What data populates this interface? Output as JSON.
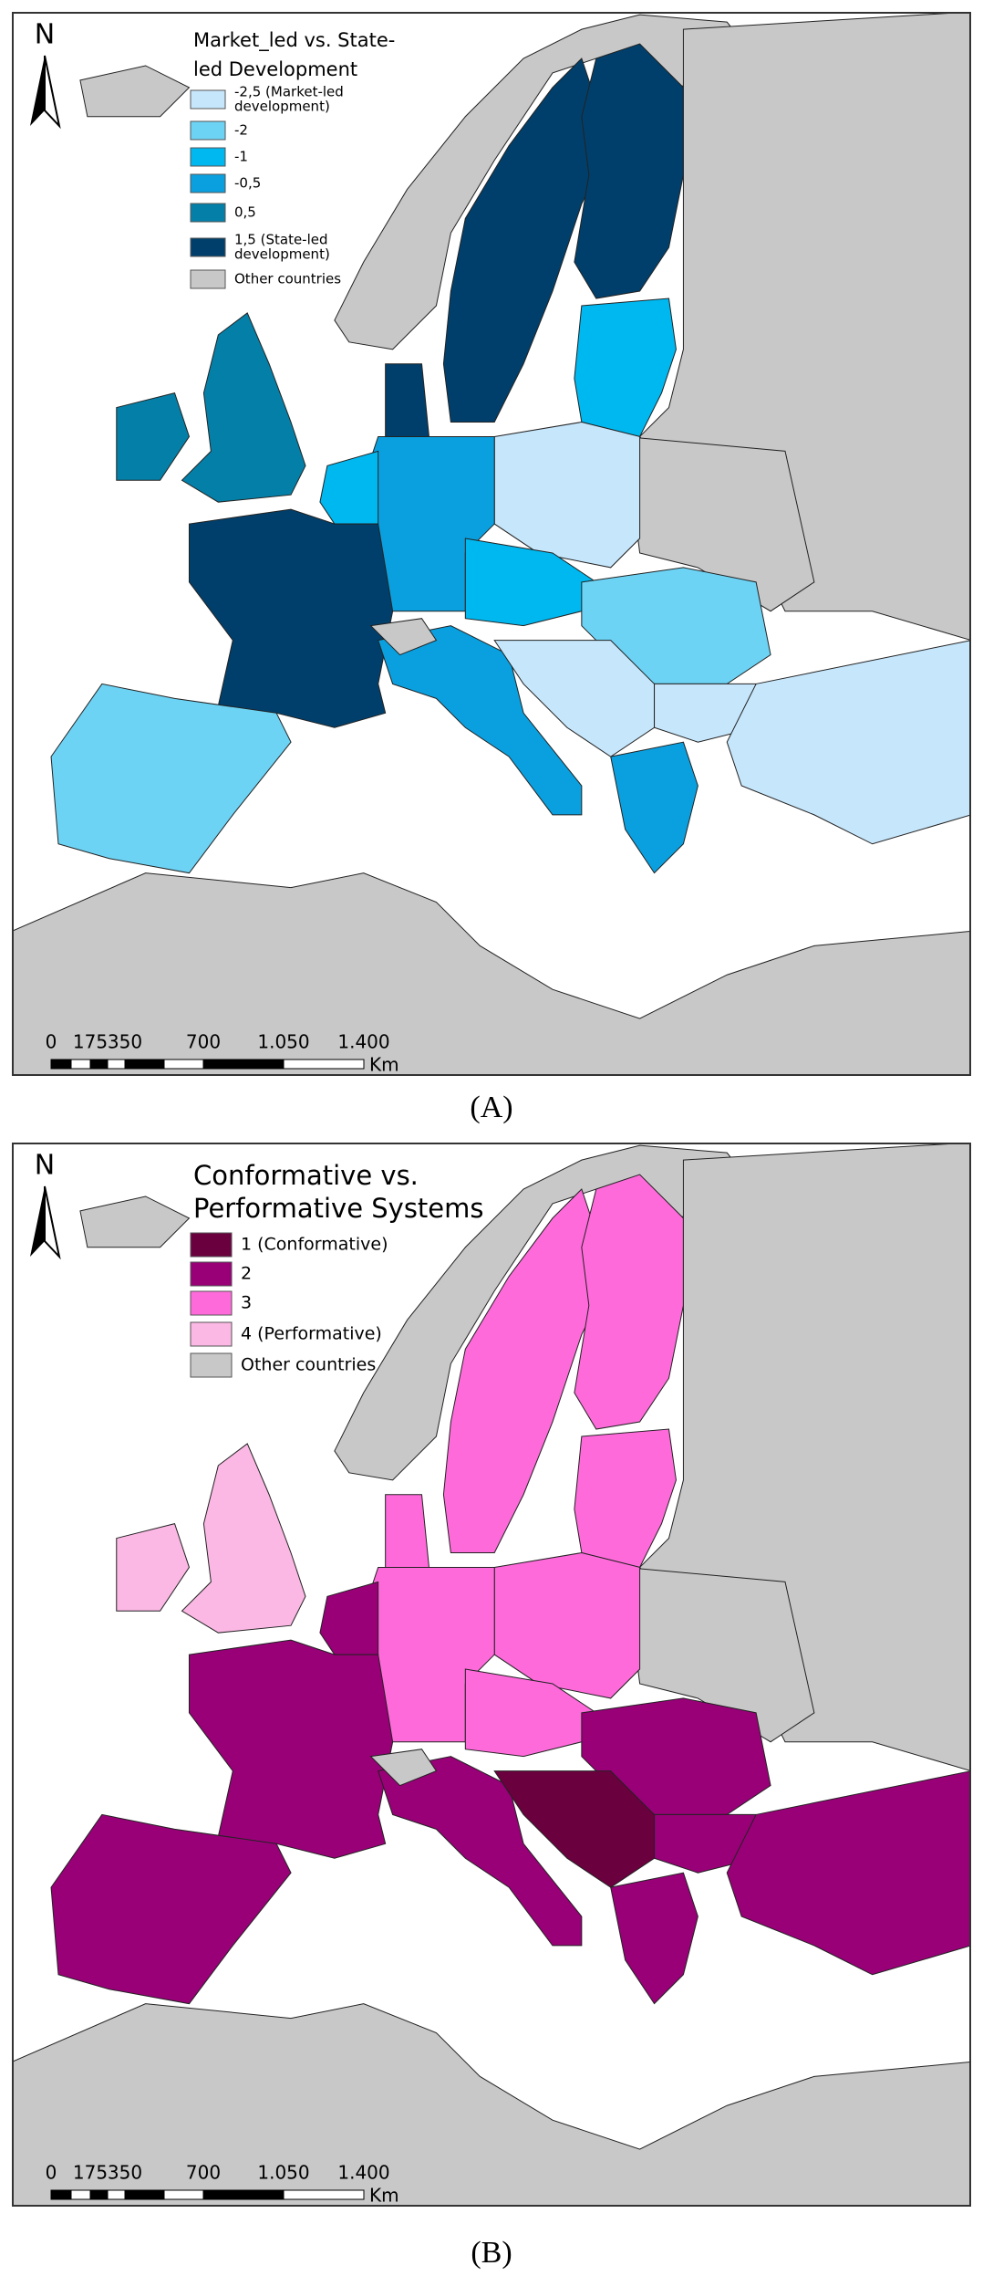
{
  "panels": [
    {
      "north": "N",
      "legend": {
        "title": [
          "Market_led vs. State-",
          "led Development"
        ],
        "items": [
          {
            "label": [
              "-2,5 (Market-led",
              "development)"
            ],
            "color": "#c6e6fb"
          },
          {
            "label": [
              "-2"
            ],
            "color": "#6dd3f5"
          },
          {
            "label": [
              "-1"
            ],
            "color": "#00b8f0"
          },
          {
            "label": [
              "-0,5"
            ],
            "color": "#0aa0df"
          },
          {
            "label": [
              "0,5"
            ],
            "color": "#0480a8"
          },
          {
            "label": [
              "1,5 (State-led",
              "development)"
            ],
            "color": "#003f6b"
          },
          {
            "label": [
              "Other countries"
            ],
            "color": "#c8c8c8"
          }
        ]
      },
      "scale": {
        "ticks": [
          "0",
          "175",
          "350",
          "700",
          "1.050",
          "1.400"
        ],
        "unit": "Km"
      },
      "caption": "(A)"
    },
    {
      "north": "N",
      "legend": {
        "title": [
          "Conformative vs.",
          "Performative Systems"
        ],
        "items": [
          {
            "label": [
              "1 (Conformative)"
            ],
            "color": "#6b003e"
          },
          {
            "label": [
              "2"
            ],
            "color": "#990077"
          },
          {
            "label": [
              "3"
            ],
            "color": "#ff6adb"
          },
          {
            "label": [
              "4 (Performative)"
            ],
            "color": "#fbb8e4"
          },
          {
            "label": [
              "Other countries"
            ],
            "color": "#c8c8c8"
          }
        ]
      },
      "scale": {
        "ticks": [
          "0",
          "175",
          "350",
          "700",
          "1.050",
          "1.400"
        ],
        "unit": "Km"
      },
      "caption": "(B)"
    }
  ]
}
